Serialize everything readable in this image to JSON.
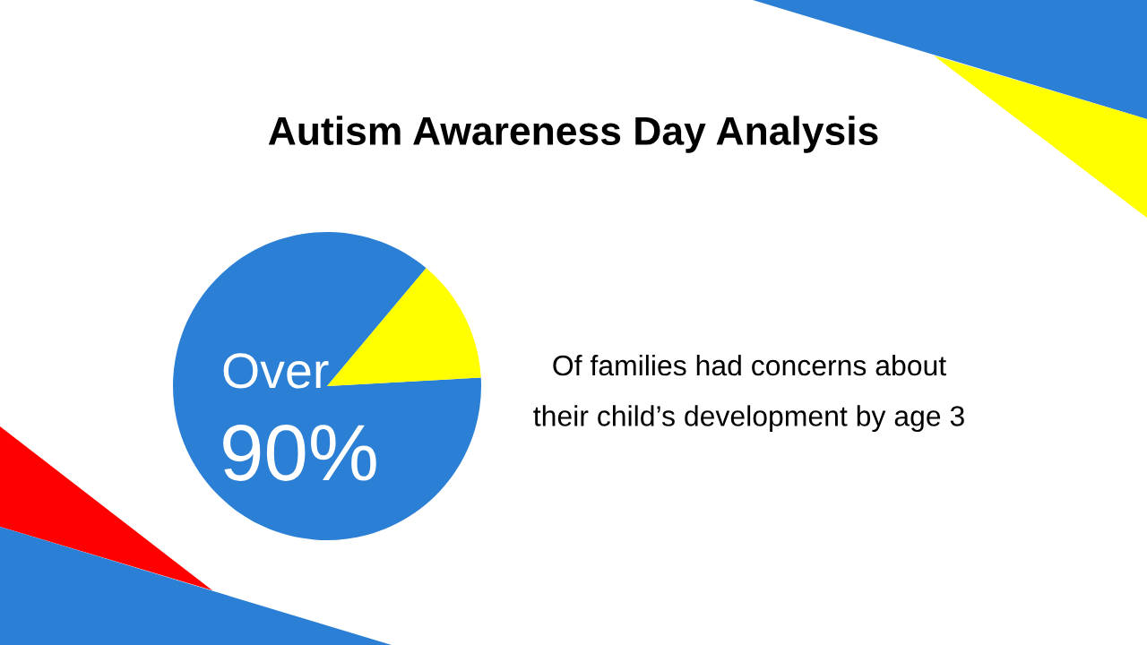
{
  "chart_data": {
    "type": "pie",
    "title": "Autism Awareness Day Analysis",
    "categories": [
      null,
      null
    ],
    "values": [
      87,
      13
    ],
    "colors": [
      "#2b80d6",
      "#ffff00"
    ],
    "annotations": [
      "Over",
      "90%",
      "Of families had concerns about\ntheir child’s development by age 3"
    ]
  }
}
